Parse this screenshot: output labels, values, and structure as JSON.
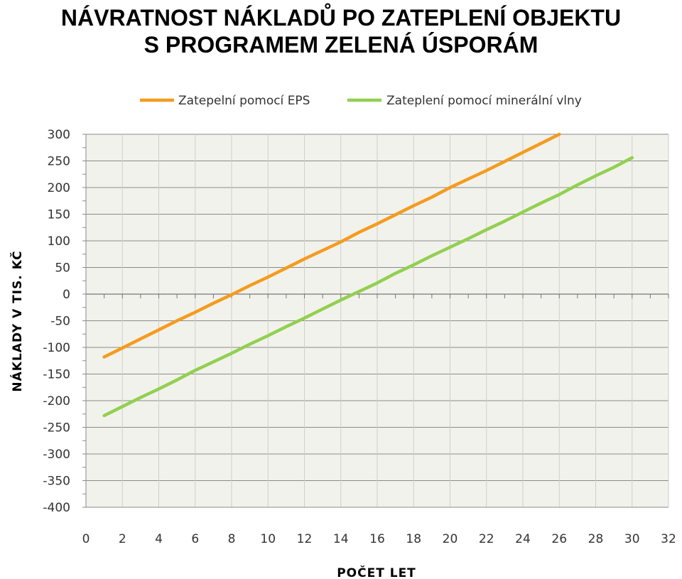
{
  "title_line1": "NÁVRATNOST NÁKLADŮ PO ZATEPLENÍ OBJEKTU",
  "title_line2": "S PROGRAMEM ZELENÁ ÚSPORÁM",
  "chart_data": {
    "type": "line",
    "title": "NÁVRATNOST NÁKLADŮ PO ZATEPLENÍ OBJEKTU S PROGRAMEM ZELENÁ ÚSPORÁM",
    "xlabel": "POČET LET",
    "ylabel": "NÁKLADY V TIS. KČ",
    "xlim": [
      0,
      32
    ],
    "ylim": [
      -400,
      300
    ],
    "xticks": [
      0,
      2,
      4,
      6,
      8,
      10,
      12,
      14,
      16,
      18,
      20,
      22,
      24,
      26,
      28,
      30,
      32
    ],
    "yticks": [
      300,
      250,
      200,
      150,
      100,
      50,
      0,
      -50,
      -100,
      -150,
      -200,
      -250,
      -300,
      -350,
      -400
    ],
    "grid": true,
    "legend_position": "top",
    "plot_background": "#f2f2ec",
    "series": [
      {
        "name": "Zatepelní pomocí EPS",
        "color": "#f59b1e",
        "points": [
          [
            1,
            -118
          ],
          [
            2,
            -101
          ],
          [
            3,
            -84
          ],
          [
            4,
            -67
          ],
          [
            5,
            -50
          ],
          [
            6,
            -34
          ],
          [
            7,
            -17
          ],
          [
            8,
            -1
          ],
          [
            9,
            16
          ],
          [
            10,
            32
          ],
          [
            11,
            49
          ],
          [
            12,
            66
          ],
          [
            13,
            82
          ],
          [
            14,
            98
          ],
          [
            15,
            116
          ],
          [
            16,
            132
          ],
          [
            17,
            149
          ],
          [
            18,
            166
          ],
          [
            19,
            182
          ],
          [
            20,
            200
          ],
          [
            21,
            216
          ],
          [
            22,
            232
          ],
          [
            23,
            249
          ],
          [
            24,
            266
          ],
          [
            25,
            283
          ],
          [
            26,
            300
          ]
        ]
      },
      {
        "name": "Zateplení pomocí minerální vlny",
        "color": "#92d050",
        "points": [
          [
            1,
            -228
          ],
          [
            2,
            -211
          ],
          [
            3,
            -194
          ],
          [
            4,
            -178
          ],
          [
            5,
            -161
          ],
          [
            6,
            -143
          ],
          [
            7,
            -127
          ],
          [
            8,
            -111
          ],
          [
            9,
            -94
          ],
          [
            10,
            -78
          ],
          [
            11,
            -61
          ],
          [
            12,
            -45
          ],
          [
            13,
            -28
          ],
          [
            14,
            -11
          ],
          [
            15,
            5
          ],
          [
            16,
            21
          ],
          [
            17,
            39
          ],
          [
            18,
            55
          ],
          [
            19,
            72
          ],
          [
            20,
            88
          ],
          [
            21,
            104
          ],
          [
            22,
            121
          ],
          [
            23,
            137
          ],
          [
            24,
            154
          ],
          [
            25,
            171
          ],
          [
            26,
            187
          ],
          [
            27,
            205
          ],
          [
            28,
            222
          ],
          [
            29,
            238
          ],
          [
            30,
            256
          ]
        ]
      }
    ]
  }
}
